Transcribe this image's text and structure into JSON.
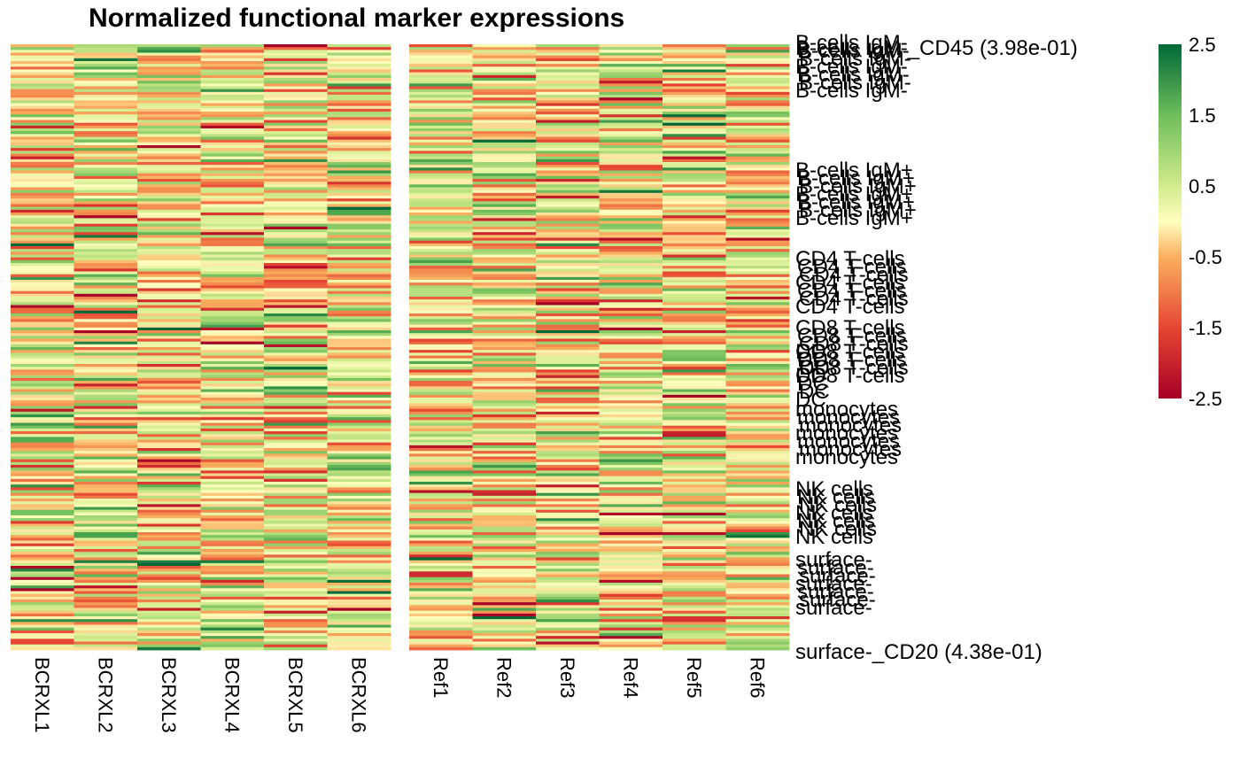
{
  "chart_data": {
    "type": "heatmap",
    "title": "Normalized functional marker expressions",
    "color_scale": {
      "min": -2.5,
      "max": 2.5,
      "ticks": [
        "2.5",
        "1.5",
        "0.5",
        "-0.5",
        "-1.5",
        "-2.5"
      ],
      "low_color": "#a50026",
      "mid_color": "#ffffbf",
      "high_color": "#006837"
    },
    "panels": [
      {
        "name": "BCRXL",
        "columns": [
          "BCRXL1",
          "BCRXL2",
          "BCRXL3",
          "BCRXL4",
          "BCRXL5",
          "BCRXL6"
        ]
      },
      {
        "name": "Ref",
        "columns": [
          "Ref1",
          "Ref2",
          "Ref3",
          "Ref4",
          "Ref5",
          "Ref6"
        ]
      }
    ],
    "row_count": 216,
    "row_label_first": "B-cells IgM-_CD45 (3.98e-01)",
    "row_label_last": "surface-_CD20 (4.38e-01)",
    "row_label_groups": [
      "B-cells IgM-",
      "B-cells IgM+",
      "CD4 T-cells",
      "CD8 T-cells",
      "DC",
      "monocytes",
      "NK cells",
      "surface-"
    ]
  }
}
